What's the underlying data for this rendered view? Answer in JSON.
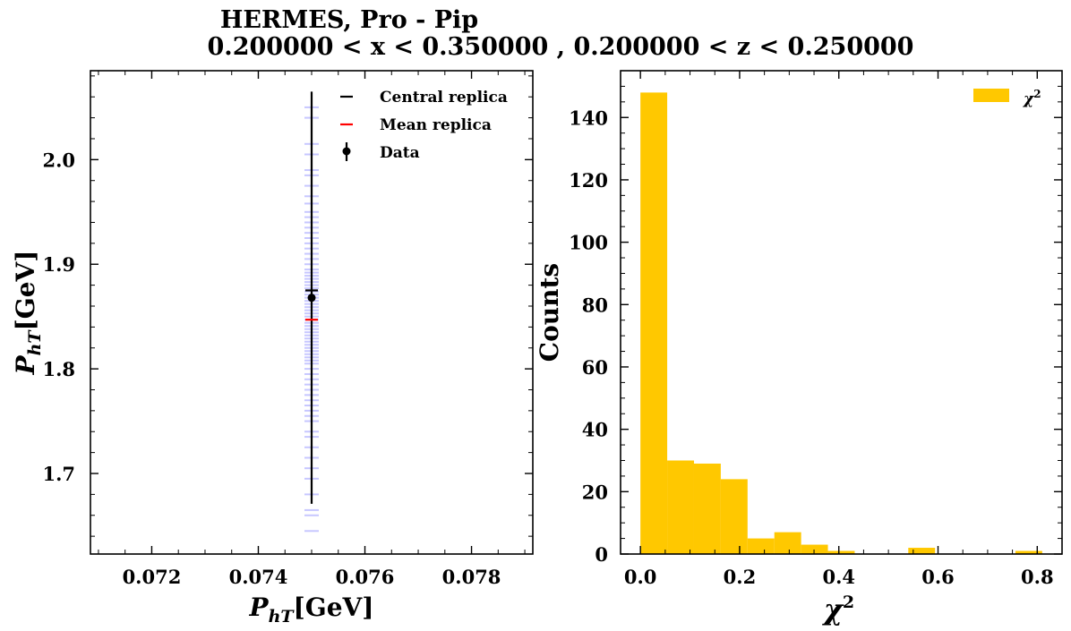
{
  "figure": {
    "title_line1": "HERMES, Pro - Pip",
    "title_line2": "0.200000 < x < 0.350000 , 0.200000 < z < 0.250000"
  },
  "chart_data": [
    {
      "type": "scatter",
      "xlabel_main": "P",
      "xlabel_sub": "hT",
      "xlabel_unit": "[GeV]",
      "ylabel_main": "P",
      "ylabel_sub": "hT",
      "ylabel_unit": "[GeV]",
      "xlim": [
        0.07085,
        0.07915
      ],
      "ylim": [
        1.623,
        2.085
      ],
      "xticks": [
        0.072,
        0.074,
        0.076,
        0.078
      ],
      "xtick_labels": [
        "0.072",
        "0.074",
        "0.076",
        "0.078"
      ],
      "yticks": [
        1.7,
        1.8,
        1.9,
        2.0
      ],
      "ytick_labels": [
        "1.7",
        "1.8",
        "1.9",
        "2.0"
      ],
      "legend": [
        "Central replica",
        "Mean replica",
        "Data"
      ],
      "legend_position": "top-right",
      "colors": {
        "replicas": "#0000ff",
        "central": "#000000",
        "mean": "#ff0000",
        "data": "#000000"
      },
      "data_point": {
        "x": 0.075,
        "y": 1.868,
        "yerr_low": 0.197,
        "yerr_high": 0.197
      },
      "central_replica": {
        "x": 0.075,
        "y": 1.875
      },
      "mean_replica": {
        "x": 0.075,
        "y": 1.847
      },
      "replicas": {
        "x": 0.075,
        "y": [
          2.05,
          2.04,
          2.015,
          2.005,
          1.99,
          1.985,
          1.975,
          1.965,
          1.958,
          1.95,
          1.945,
          1.94,
          1.935,
          1.93,
          1.925,
          1.92,
          1.915,
          1.91,
          1.905,
          1.9,
          1.895,
          1.892,
          1.889,
          1.886,
          1.883,
          1.88,
          1.877,
          1.874,
          1.871,
          1.868,
          1.865,
          1.862,
          1.859,
          1.856,
          1.853,
          1.85,
          1.847,
          1.844,
          1.841,
          1.838,
          1.835,
          1.832,
          1.829,
          1.826,
          1.823,
          1.82,
          1.817,
          1.814,
          1.811,
          1.808,
          1.805,
          1.8,
          1.795,
          1.79,
          1.785,
          1.78,
          1.775,
          1.77,
          1.765,
          1.76,
          1.755,
          1.75,
          1.74,
          1.735,
          1.725,
          1.715,
          1.705,
          1.695,
          1.68,
          1.665,
          1.66,
          1.645
        ]
      }
    },
    {
      "type": "bar",
      "xlabel_main": "χ",
      "xlabel_sup": "2",
      "ylabel": "Counts",
      "xlim": [
        -0.04,
        0.85
      ],
      "ylim": [
        0,
        155
      ],
      "xticks": [
        0.0,
        0.2,
        0.4,
        0.6,
        0.8
      ],
      "xtick_labels": [
        "0.0",
        "0.2",
        "0.4",
        "0.6",
        "0.8"
      ],
      "yticks": [
        0,
        20,
        40,
        60,
        80,
        100,
        120,
        140
      ],
      "ytick_labels": [
        "0",
        "20",
        "40",
        "60",
        "80",
        "100",
        "120",
        "140"
      ],
      "bin_edges": [
        0.0,
        0.054,
        0.108,
        0.162,
        0.216,
        0.27,
        0.324,
        0.378,
        0.432,
        0.486,
        0.54,
        0.594,
        0.648,
        0.702,
        0.756,
        0.81
      ],
      "values": [
        148,
        30,
        29,
        24,
        5,
        7,
        3,
        1,
        0,
        0,
        2,
        0,
        0,
        0,
        1
      ],
      "legend_main": "χ",
      "legend_sup": "2",
      "legend_position": "top-right",
      "color": "#ffc800"
    }
  ]
}
